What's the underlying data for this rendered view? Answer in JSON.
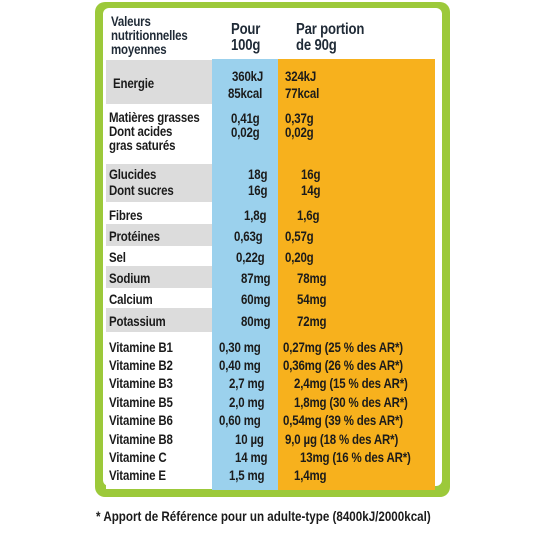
{
  "header": {
    "col_nutrient": [
      "Valeurs",
      "nutritionnelles",
      "moyennes"
    ],
    "col_100g": [
      "Pour",
      "100g"
    ],
    "col_portion": [
      "Par portion",
      "de 90g"
    ]
  },
  "rows": [
    {
      "label": [
        "Energie"
      ],
      "per100": [
        "360kJ",
        "85kcal"
      ],
      "portion": [
        "324kJ",
        "77kcal"
      ]
    },
    {
      "label": [
        "Matières grasses",
        "Dont acides",
        "gras saturés"
      ],
      "per100": [
        "0,41g",
        "0,02g"
      ],
      "portion": [
        "0,37g",
        "0,02g"
      ]
    },
    {
      "label": [
        "Glucides"
      ],
      "per100": [
        "18g"
      ],
      "portion": [
        "16g"
      ]
    },
    {
      "label": [
        "Dont sucres"
      ],
      "per100": [
        "16g"
      ],
      "portion": [
        "14g"
      ]
    },
    {
      "label": [
        "Fibres"
      ],
      "per100": [
        "1,8g"
      ],
      "portion": [
        "1,6g"
      ]
    },
    {
      "label": [
        "Protéines"
      ],
      "per100": [
        "0,63g"
      ],
      "portion": [
        "0,57g"
      ]
    },
    {
      "label": [
        "Sel"
      ],
      "per100": [
        "0,22g"
      ],
      "portion": [
        "0,20g"
      ]
    },
    {
      "label": [
        "Sodium"
      ],
      "per100": [
        "87mg"
      ],
      "portion": [
        "78mg"
      ]
    },
    {
      "label": [
        "Calcium"
      ],
      "per100": [
        "60mg"
      ],
      "portion": [
        "54mg"
      ]
    },
    {
      "label": [
        "Potassium"
      ],
      "per100": [
        "80mg"
      ],
      "portion": [
        "72mg"
      ]
    },
    {
      "label": [
        "Vitamine B1"
      ],
      "per100": [
        "0,30 mg"
      ],
      "portion": [
        "0,27mg (25 % des AR*)"
      ]
    },
    {
      "label": [
        "Vitamine B2"
      ],
      "per100": [
        "0,40 mg"
      ],
      "portion": [
        "0,36mg (26 % des AR*)"
      ]
    },
    {
      "label": [
        "Vitamine B3"
      ],
      "per100": [
        "2,7 mg"
      ],
      "portion": [
        "2,4mg (15 % des AR*)"
      ]
    },
    {
      "label": [
        "Vitamine B5"
      ],
      "per100": [
        "2,0 mg"
      ],
      "portion": [
        "1,8mg (30 % des AR*)"
      ]
    },
    {
      "label": [
        "Vitamine B6"
      ],
      "per100": [
        "0,60 mg"
      ],
      "portion": [
        "0,54mg (39 % des AR*)"
      ]
    },
    {
      "label": [
        "Vitamine B8"
      ],
      "per100": [
        "10 µg"
      ],
      "portion": [
        "9,0 µg (18 % des AR*)"
      ]
    },
    {
      "label": [
        "Vitamine C"
      ],
      "per100": [
        "14 mg"
      ],
      "portion": [
        "13mg (16 % des AR*)"
      ]
    },
    {
      "label": [
        "Vitamine E"
      ],
      "per100": [
        "1,5 mg"
      ],
      "portion": [
        "1,4mg"
      ]
    }
  ],
  "footnote": "* Apport de Référence pour un adulte-type (8400kJ/2000kcal)",
  "colors": {
    "frame": "#9cc93a",
    "col_100g": "#9bd1ed",
    "col_portion": "#f7b11d",
    "row_shade": "#dcdcdc"
  }
}
